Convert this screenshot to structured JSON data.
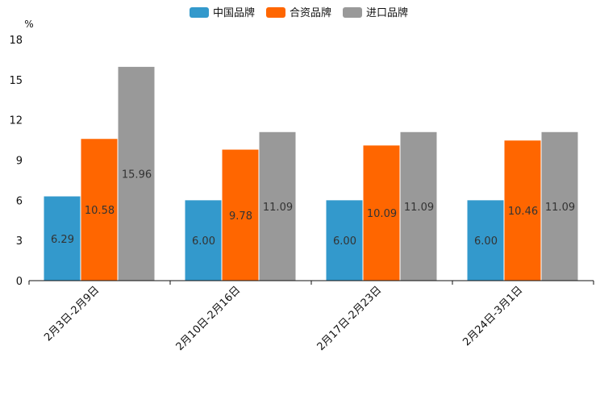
{
  "chart_data": {
    "type": "bar",
    "unit": "%",
    "categories": [
      "2月3日-2月9日",
      "2月10日-2月16日",
      "2月17日-2月23日",
      "2月24日-3月1日"
    ],
    "series": [
      {
        "name": "中国品牌",
        "color": "#3399cc",
        "values": [
          6.29,
          6.0,
          6.0,
          6.0
        ],
        "labels": [
          "6.29",
          "6.00",
          "6.00",
          "6.00"
        ]
      },
      {
        "name": "合资品牌",
        "color": "#ff6600",
        "values": [
          10.58,
          9.78,
          10.09,
          10.46
        ],
        "labels": [
          "10.58",
          "9.78",
          "10.09",
          "10.46"
        ]
      },
      {
        "name": "进口品牌",
        "color": "#999999",
        "values": [
          15.96,
          11.09,
          11.09,
          11.09
        ],
        "labels": [
          "15.96",
          "11.09",
          "11.09",
          "11.09"
        ]
      }
    ],
    "y_ticks": [
      0,
      3,
      6,
      9,
      12,
      15,
      18
    ],
    "ylim": [
      0,
      18
    ],
    "legend_position": "top-center",
    "grid": false
  }
}
